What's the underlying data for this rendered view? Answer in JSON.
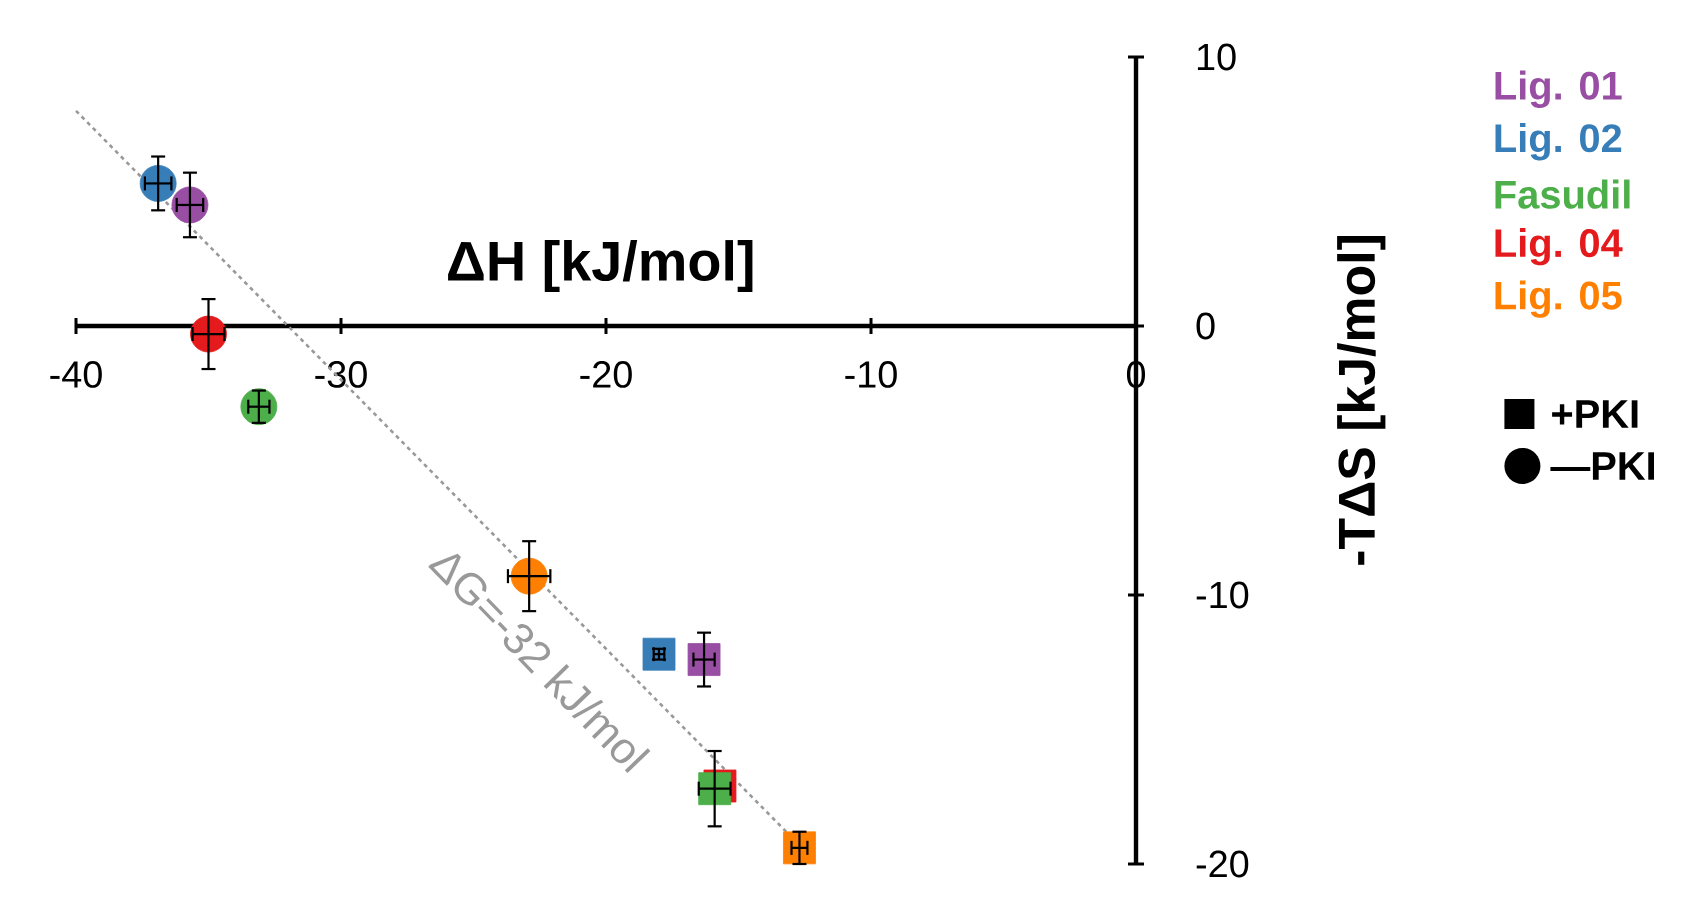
{
  "chart_data": {
    "type": "scatter",
    "xlabel": "ΔH [kJ/mol]",
    "ylabel": "-TΔS [kJ/mol]",
    "xlim": [
      -40,
      0
    ],
    "ylim": [
      -20,
      10
    ],
    "xticks": [
      -40,
      -30,
      -20,
      -10,
      0
    ],
    "yticks": [
      -20,
      -10,
      0,
      10
    ],
    "legend": "right",
    "series": [
      {
        "type": "line",
        "color": "#999999",
        "line_style": "dotted",
        "marker": "none",
        "x": [
          -40,
          -12.5
        ],
        "values": [
          8,
          -19.5
        ]
      },
      {
        "name": "Lig. 01",
        "color": "#984ea3",
        "marker": "circle",
        "x": [
          -35.7
        ],
        "values": [
          4.5
        ],
        "errors": [
          1.2
        ],
        "xerrors": [
          0.5
        ]
      },
      {
        "name": "Lig. 02",
        "color": "#377eb8",
        "marker": "circle",
        "x": [
          -36.9
        ],
        "values": [
          5.3
        ],
        "errors": [
          1.0
        ],
        "xerrors": [
          0.5
        ]
      },
      {
        "name": "Fasudil",
        "color": "#4daf4a",
        "marker": "circle",
        "x": [
          -33.1
        ],
        "values": [
          -3.0
        ],
        "errors": [
          0.6
        ],
        "xerrors": [
          0.4
        ]
      },
      {
        "name": "Lig. 04",
        "color": "#e41a1c",
        "marker": "circle",
        "x": [
          -35.0
        ],
        "values": [
          -0.3
        ],
        "errors": [
          1.3
        ],
        "xerrors": [
          0.6
        ]
      },
      {
        "name": "Lig. 05",
        "color": "#ff7f00",
        "marker": "circle",
        "x": [
          -22.9
        ],
        "values": [
          -9.3
        ],
        "errors": [
          1.3
        ],
        "xerrors": [
          0.8
        ]
      },
      {
        "color": "#984ea3",
        "marker": "square",
        "x": [
          -16.3
        ],
        "values": [
          -12.4
        ],
        "errors": [
          1.0
        ],
        "xerrors": [
          0.4
        ]
      },
      {
        "color": "#377eb8",
        "marker": "square",
        "x": [
          -18.0
        ],
        "values": [
          -12.2
        ],
        "errors": [
          0.2
        ],
        "xerrors": [
          0.2
        ]
      },
      {
        "color": "#e41a1c",
        "marker": "square",
        "x": [
          -15.7
        ],
        "values": [
          -17.1
        ],
        "errors": [
          null
        ],
        "xerrors": [
          null
        ]
      },
      {
        "color": "#4daf4a",
        "marker": "square",
        "x": [
          -15.9
        ],
        "values": [
          -17.2
        ],
        "errors": [
          1.4
        ],
        "xerrors": [
          0.6
        ]
      },
      {
        "color": "#ff7f00",
        "marker": "square",
        "x": [
          -12.7
        ],
        "values": [
          -19.4
        ],
        "errors": [
          0.6
        ],
        "xerrors": [
          0.3
        ]
      }
    ],
    "annotations": [
      "ΔG=-32 kJ/mol",
      "+PKI",
      "—PKI"
    ]
  }
}
